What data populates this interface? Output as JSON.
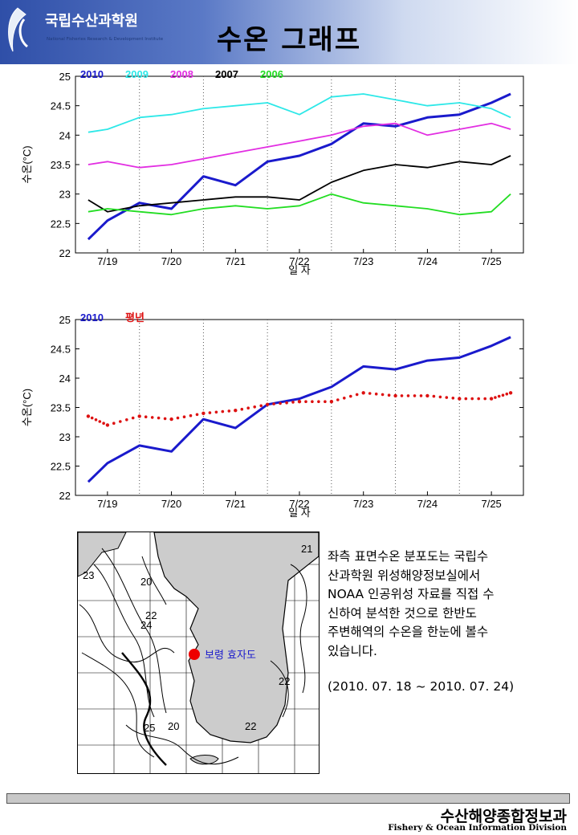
{
  "header": {
    "org_name": "국립수산과학원",
    "org_subtitle": "National Fisheries Research & Development Institute",
    "title": "수온 그래프"
  },
  "colors": {
    "y2010": "#1a1acc",
    "y2009": "#2ee8e8",
    "y2008": "#e22ee2",
    "y2007": "#000000",
    "y2006": "#22dd22",
    "normal": "#dd1111"
  },
  "chart_data": [
    {
      "type": "line",
      "xlabel": "일 자",
      "ylabel": "수온(°C)",
      "ylim": [
        22,
        25
      ],
      "yticks": [
        "22",
        "22.5",
        "23",
        "23.5",
        "24",
        "24.5",
        "25"
      ],
      "categories": [
        "7/19",
        "7/20",
        "7/21",
        "7/22",
        "7/23",
        "7/24",
        "7/25"
      ],
      "grid": "vertical dotted at day boundaries",
      "legend": "top-left",
      "series": [
        {
          "name": "2010",
          "color": "#1a1acc",
          "x": [
            7.2,
            7.5,
            8.0,
            8.5,
            9.0,
            9.5,
            10.0,
            10.5,
            11.0,
            11.5,
            12.0,
            12.5,
            13.0,
            13.5,
            13.8
          ],
          "values": [
            22.23,
            22.55,
            22.85,
            22.75,
            23.3,
            23.15,
            23.55,
            23.65,
            23.85,
            24.2,
            24.15,
            24.3,
            24.35,
            24.55,
            24.7
          ]
        },
        {
          "name": "2009",
          "color": "#2ee8e8",
          "x": [
            7.2,
            7.5,
            8.0,
            8.5,
            9.0,
            9.5,
            10.0,
            10.5,
            11.0,
            11.5,
            12.0,
            12.5,
            13.0,
            13.5,
            13.8
          ],
          "values": [
            24.05,
            24.1,
            24.3,
            24.35,
            24.45,
            24.5,
            24.55,
            24.35,
            24.65,
            24.7,
            24.6,
            24.5,
            24.55,
            24.45,
            24.3
          ]
        },
        {
          "name": "2008",
          "color": "#e22ee2",
          "x": [
            7.2,
            7.5,
            8.0,
            8.5,
            9.0,
            9.5,
            10.0,
            10.5,
            11.0,
            11.5,
            12.0,
            12.5,
            13.0,
            13.5,
            13.8
          ],
          "values": [
            23.5,
            23.55,
            23.45,
            23.5,
            23.6,
            23.7,
            23.8,
            23.9,
            24.0,
            24.15,
            24.2,
            24.0,
            24.1,
            24.2,
            24.1
          ]
        },
        {
          "name": "2007",
          "color": "#000000",
          "x": [
            7.2,
            7.5,
            8.0,
            8.5,
            9.0,
            9.5,
            10.0,
            10.5,
            11.0,
            11.5,
            12.0,
            12.5,
            13.0,
            13.5,
            13.8
          ],
          "values": [
            22.9,
            22.7,
            22.8,
            22.85,
            22.9,
            22.95,
            22.95,
            22.9,
            23.2,
            23.4,
            23.5,
            23.45,
            23.55,
            23.5,
            23.65
          ]
        },
        {
          "name": "2006",
          "color": "#22dd22",
          "x": [
            7.2,
            7.5,
            8.0,
            8.5,
            9.0,
            9.5,
            10.0,
            10.5,
            11.0,
            11.5,
            12.0,
            12.5,
            13.0,
            13.5,
            13.8
          ],
          "values": [
            22.7,
            22.75,
            22.7,
            22.65,
            22.75,
            22.8,
            22.75,
            22.8,
            23.0,
            22.85,
            22.8,
            22.75,
            22.65,
            22.7,
            23.0
          ]
        }
      ]
    },
    {
      "type": "line",
      "xlabel": "일 자",
      "ylabel": "수온(°C)",
      "ylim": [
        22,
        25
      ],
      "yticks": [
        "22",
        "22.5",
        "23",
        "23.5",
        "24",
        "24.5",
        "25"
      ],
      "categories": [
        "7/19",
        "7/20",
        "7/21",
        "7/22",
        "7/23",
        "7/24",
        "7/25"
      ],
      "grid": "vertical dotted at day boundaries",
      "legend": "top-left",
      "series": [
        {
          "name": "2010",
          "color": "#1a1acc",
          "x": [
            7.2,
            7.5,
            8.0,
            8.5,
            9.0,
            9.5,
            10.0,
            10.5,
            11.0,
            11.5,
            12.0,
            12.5,
            13.0,
            13.5,
            13.8
          ],
          "values": [
            22.23,
            22.55,
            22.85,
            22.75,
            23.3,
            23.15,
            23.55,
            23.65,
            23.85,
            24.2,
            24.15,
            24.3,
            24.35,
            24.55,
            24.7
          ]
        },
        {
          "name": "평년",
          "color": "#dd1111",
          "style": "dots",
          "x": [
            7.2,
            7.5,
            8.0,
            8.5,
            9.0,
            9.5,
            10.0,
            10.5,
            11.0,
            11.5,
            12.0,
            12.5,
            13.0,
            13.5,
            13.8
          ],
          "values": [
            23.35,
            23.2,
            23.35,
            23.3,
            23.4,
            23.45,
            23.55,
            23.6,
            23.6,
            23.75,
            23.7,
            23.7,
            23.65,
            23.65,
            23.75
          ]
        }
      ]
    }
  ],
  "map": {
    "marker_label": "보령 효자도",
    "contour_labels": [
      "21",
      "23",
      "20",
      "22",
      "24",
      "22",
      "25",
      "20",
      "22"
    ]
  },
  "description": {
    "text": "좌측 표면수온 분포도는 국립수\n산과학원 위성해양정보실에서\nNOAA 인공위성 자료를 직접 수\n신하여 분석한 것으로  한반도\n주변해역의 수온을 한눈에 볼수\n있습니다.",
    "period": "(2010. 07. 18 ~ 2010. 07. 24)"
  },
  "footer": {
    "division_ko": "수산해양종합정보과",
    "division_en": "Fishery & Ocean Information Division"
  }
}
